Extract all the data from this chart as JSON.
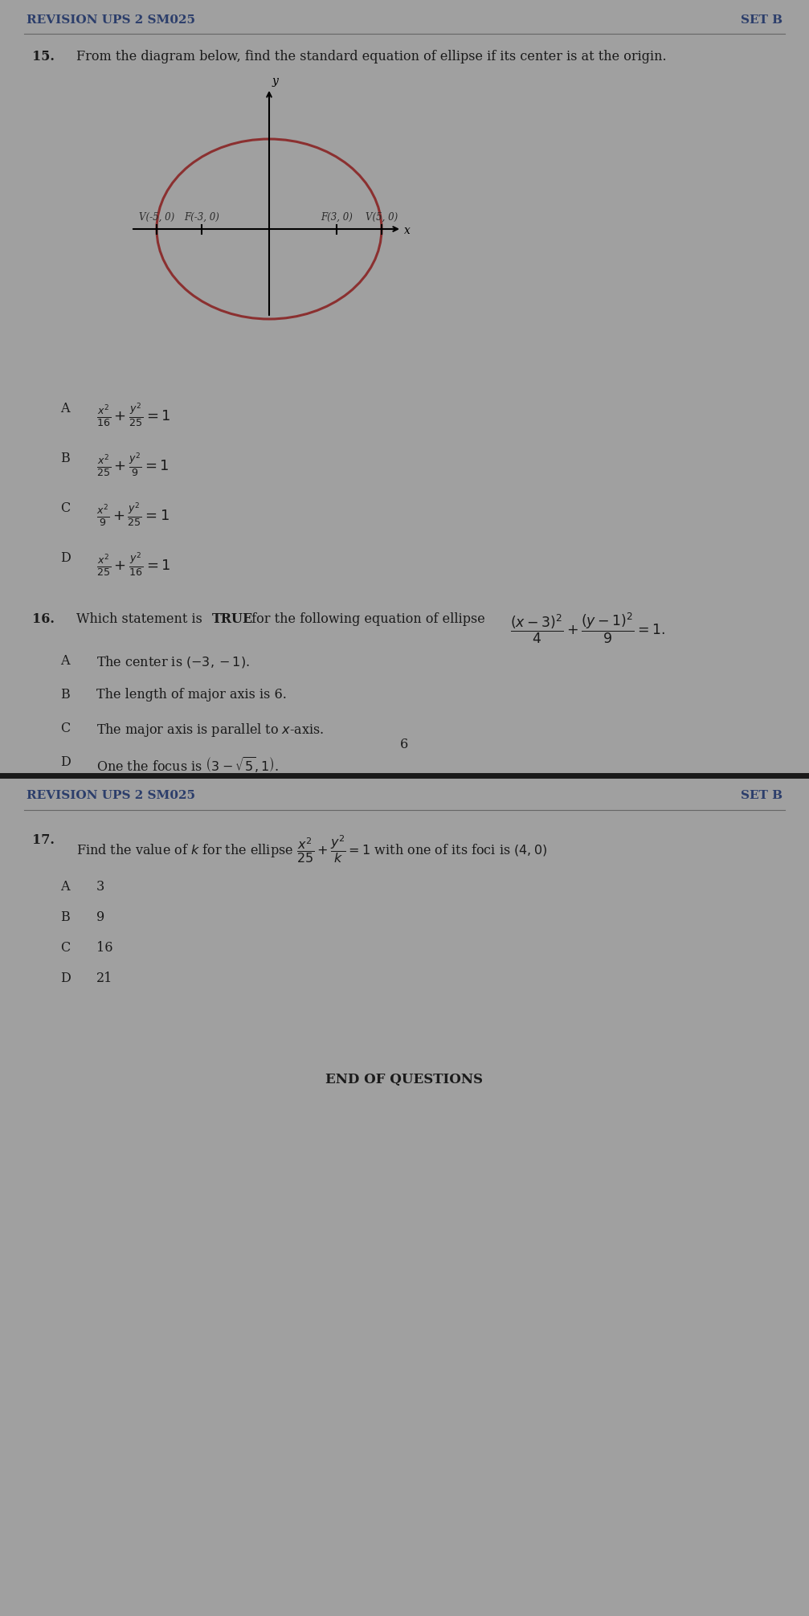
{
  "bg_color": "#a0a0a0",
  "header_left": "REVISION UPS 2 SM025",
  "header_right": "SET B",
  "header_color": "#2c3e6b",
  "q15_options": [
    [
      "A",
      "$\\frac{x^2}{16}+\\frac{y^2}{25}=1$"
    ],
    [
      "B",
      "$\\frac{x^2}{25}+\\frac{y^2}{9}=1$"
    ],
    [
      "C",
      "$\\frac{x^2}{9}+\\frac{y^2}{25}=1$"
    ],
    [
      "D",
      "$\\frac{x^2}{25}+\\frac{y^2}{16}=1$"
    ]
  ],
  "q16_options": [
    [
      "A",
      "The center is $\\left(-3,-1\\right)$."
    ],
    [
      "B",
      "The length of major axis is 6."
    ],
    [
      "C",
      "The major axis is parallel to $x$-axis."
    ],
    [
      "D",
      "One the focus is $\\left(3-\\sqrt{5},1\\right)$."
    ]
  ],
  "q17_options": [
    [
      "A",
      "3"
    ],
    [
      "B",
      "9"
    ],
    [
      "C",
      "16"
    ],
    [
      "D",
      "21"
    ]
  ],
  "ellipse_color": "#8b3030",
  "text_color": "#1a1a1a"
}
